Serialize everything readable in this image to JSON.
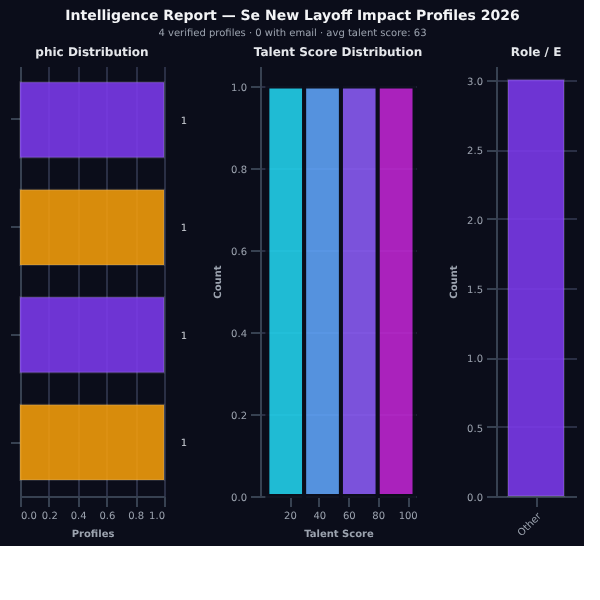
{
  "chart_data": [
    {
      "type": "other",
      "title": "Intelligence Report — Se New Layoff Impact Profiles 2026",
      "subtitle": "4 verified profiles · 0 with email · avg talent score: 63"
    },
    {
      "type": "bar",
      "title": "phic Distribution",
      "orientation": "horizontal",
      "categories": [
        null,
        null,
        null,
        null
      ],
      "values": [
        1,
        1,
        1,
        1
      ],
      "colors": [
        "#7c3aed",
        "#f59e0b",
        "#7c3aed",
        "#f59e0b"
      ],
      "xlim": [
        0,
        1
      ],
      "xticks": [
        {
          "value": 0,
          "label": "0.0"
        },
        0.2,
        0.4,
        0.6,
        0.8,
        {
          "value": 1,
          "label": "1.0"
        }
      ],
      "xlabel": "Profiles",
      "grid": "x",
      "data_labels": true,
      "tick_labels": "x"
    },
    {
      "type": "histogram",
      "title": "Talent Score Distribution",
      "bins": [
        5,
        30,
        55,
        80,
        105
      ],
      "values": [
        1,
        1,
        1,
        1
      ],
      "colors": [
        "#22d3ee",
        "#60a5fa",
        "#8b5cf6",
        "#c026d3"
      ],
      "xlim": [
        0,
        106
      ],
      "xticks": [
        20,
        40,
        60,
        80,
        100
      ],
      "ylim": [
        0,
        1.05
      ],
      "yticks": [
        {
          "value": 0,
          "label": "0.0"
        },
        0.2,
        0.4,
        0.6,
        0.8,
        {
          "value": 1,
          "label": "1.0"
        }
      ],
      "xlabel": "Talent Score",
      "ylabel": "Count",
      "grid": "y"
    },
    {
      "type": "bar",
      "title": "Role / E",
      "categories": [
        "Other"
      ],
      "values": [
        3
      ],
      "colors": [
        "#7c3aed"
      ],
      "ylim": [
        0,
        3.1
      ],
      "yticks": [
        {
          "value": 0,
          "label": "0.0"
        },
        0.5,
        {
          "value": 1,
          "label": "1.0"
        },
        1.5,
        {
          "value": 2,
          "label": "2.0"
        },
        2.5,
        {
          "value": 3,
          "label": "3.0"
        }
      ],
      "ylabel": "Count",
      "grid": "y"
    }
  ]
}
